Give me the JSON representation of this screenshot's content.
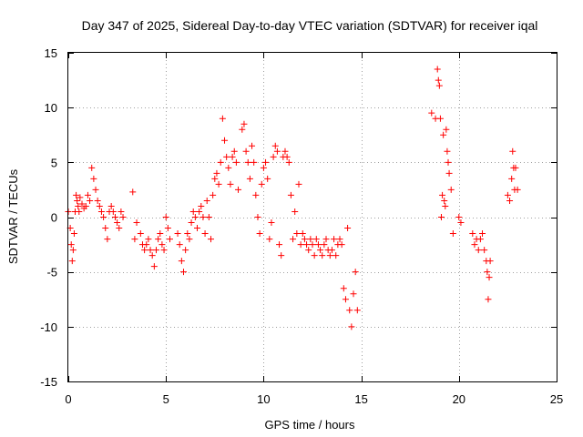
{
  "chart_data": {
    "type": "scatter",
    "title": "Day 347 of 2025, Sidereal Day-to-day VTEC variation (SDTVAR) for receiver iqal",
    "xlabel": "GPS time / hours",
    "ylabel": "SDTVAR / TECUs",
    "xlim": [
      0,
      25
    ],
    "ylim": [
      -15,
      15
    ],
    "xticks": [
      0,
      5,
      10,
      15,
      20,
      25
    ],
    "xtick_labels": [
      "0",
      "5",
      "10",
      "15",
      "20",
      "25"
    ],
    "yticks": [
      -15,
      -10,
      -5,
      0,
      5,
      10,
      15
    ],
    "ytick_labels": [
      "-15",
      "-10",
      "-5",
      "0",
      "5",
      "10",
      "15"
    ],
    "grid": true,
    "marker": "+",
    "series": [
      {
        "name": "SDTVAR",
        "color": "#ff0000",
        "segments": [
          {
            "x": [
              0.0,
              0.1,
              0.15,
              0.2,
              0.25,
              0.3,
              0.35,
              0.4,
              0.45,
              0.5,
              0.55,
              0.6,
              0.7,
              0.8,
              0.9,
              1.0,
              1.1,
              1.2,
              1.3,
              1.4,
              1.5,
              1.6,
              1.7,
              1.8,
              1.9,
              2.0,
              2.1,
              2.2,
              2.3,
              2.4,
              2.5,
              2.6,
              2.7,
              2.8
            ],
            "y": [
              0.5,
              -1.0,
              -2.5,
              -4.0,
              -3.0,
              -1.5,
              0.5,
              2.0,
              1.5,
              1.0,
              0.5,
              1.8,
              1.2,
              0.8,
              1.0,
              2.0,
              1.5,
              4.5,
              3.5,
              2.5,
              1.5,
              1.0,
              0.5,
              0.0,
              -1.0,
              -2.0,
              0.5,
              1.0,
              0.5,
              0.0,
              -0.5,
              -1.0,
              0.5,
              0.0
            ]
          },
          {
            "x": [
              3.3,
              3.4,
              3.5,
              3.7,
              3.8,
              3.9,
              4.0,
              4.1,
              4.2,
              4.3,
              4.4,
              4.5,
              4.6,
              4.7,
              4.8,
              4.9,
              5.0,
              5.1,
              5.2
            ],
            "y": [
              2.3,
              -2.0,
              -0.5,
              -1.5,
              -2.5,
              -3.0,
              -2.5,
              -2.0,
              -3.0,
              -3.5,
              -4.5,
              -3.0,
              -2.0,
              -1.5,
              -2.5,
              -3.0,
              0.0,
              -1.0,
              -2.0
            ]
          },
          {
            "x": [
              5.6,
              5.7,
              5.8,
              5.9,
              6.0,
              6.1,
              6.2,
              6.3,
              6.4,
              6.5,
              6.6,
              6.7,
              6.8,
              6.9,
              7.0,
              7.1,
              7.2,
              7.3,
              7.4,
              7.5,
              7.6,
              7.7,
              7.8,
              7.9,
              8.0,
              8.1,
              8.2,
              8.3,
              8.4,
              8.5,
              8.6,
              8.7
            ],
            "y": [
              -1.5,
              -2.5,
              -4.0,
              -5.0,
              -3.0,
              -1.5,
              -2.0,
              -0.5,
              0.5,
              0.0,
              -1.0,
              0.5,
              1.0,
              0.0,
              -1.5,
              1.5,
              0.0,
              -2.0,
              2.0,
              3.5,
              4.0,
              3.0,
              5.0,
              9.0,
              7.0,
              5.5,
              4.5,
              3.0,
              5.5,
              6.0,
              5.0,
              2.5
            ]
          },
          {
            "x": [
              8.9,
              9.0,
              9.1,
              9.2,
              9.3,
              9.4,
              9.5,
              9.6,
              9.7,
              9.8,
              9.9,
              10.0,
              10.1,
              10.2,
              10.3,
              10.4,
              10.5,
              10.6,
              10.7,
              10.8,
              10.9,
              11.0,
              11.1,
              11.2,
              11.3,
              11.4,
              11.5,
              11.6,
              11.7,
              11.8,
              11.9,
              12.0,
              12.1,
              12.2
            ],
            "y": [
              8.0,
              8.5,
              6.0,
              5.0,
              3.5,
              6.5,
              5.0,
              2.0,
              0.0,
              -1.5,
              3.0,
              4.5,
              5.0,
              3.5,
              -2.0,
              -0.5,
              5.5,
              6.5,
              6.0,
              -2.5,
              -3.5,
              5.5,
              6.0,
              5.5,
              5.0,
              2.0,
              -2.0,
              0.5,
              -1.5,
              3.0,
              -2.5,
              -1.5,
              -2.0,
              -2.5
            ]
          },
          {
            "x": [
              12.3,
              12.4,
              12.5,
              12.6,
              12.7,
              12.8,
              12.9,
              13.0,
              13.1,
              13.2,
              13.3,
              13.4,
              13.5,
              13.6,
              13.7,
              13.8,
              13.9,
              14.0,
              14.1,
              14.2,
              14.3,
              14.4,
              14.5,
              14.6,
              14.7,
              14.8
            ],
            "y": [
              -3.0,
              -2.0,
              -2.5,
              -3.5,
              -2.0,
              -2.5,
              -3.0,
              -3.5,
              -2.5,
              -2.0,
              -3.0,
              -3.5,
              -3.0,
              -2.0,
              -3.5,
              -2.5,
              -2.0,
              -2.5,
              -6.5,
              -7.5,
              -1.0,
              -8.5,
              -10.0,
              -7.0,
              -5.0,
              -8.5
            ]
          },
          {
            "x": [
              18.6,
              18.8,
              18.9,
              18.95,
              19.0,
              19.05,
              19.1,
              19.15,
              19.2,
              19.25,
              19.3,
              19.35,
              19.4,
              19.45,
              19.5,
              19.6,
              19.7
            ],
            "y": [
              9.5,
              9.0,
              13.5,
              12.5,
              12.0,
              9.0,
              0.0,
              2.0,
              7.5,
              1.5,
              1.0,
              8.0,
              6.0,
              5.0,
              4.0,
              2.5,
              -1.5
            ]
          },
          {
            "x": [
              20.0,
              20.1
            ],
            "y": [
              0.0,
              -0.5
            ]
          },
          {
            "x": [
              20.7,
              20.8,
              20.9,
              21.0,
              21.1,
              21.2,
              21.3,
              21.4,
              21.45,
              21.5,
              21.55,
              21.6
            ],
            "y": [
              -1.5,
              -2.5,
              -2.0,
              -3.0,
              -2.0,
              -1.5,
              -3.0,
              -4.0,
              -5.0,
              -7.5,
              -5.5,
              -4.0
            ]
          },
          {
            "x": [
              22.5,
              22.6,
              22.7,
              22.75,
              22.8,
              22.85,
              22.9,
              23.0
            ],
            "y": [
              2.0,
              1.5,
              3.5,
              6.0,
              4.5,
              2.5,
              4.5,
              2.5
            ]
          }
        ]
      }
    ]
  }
}
